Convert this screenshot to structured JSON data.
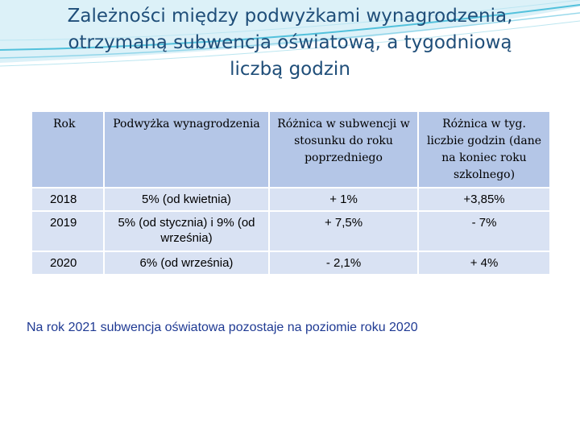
{
  "title": {
    "line1": "Zależności między podwyżkami wynagrodzenia,",
    "line2": "otrzymaną subwencja oświatową, a tygodniową",
    "line3": "liczbą godzin"
  },
  "table": {
    "headers": [
      "Rok",
      "Podwyżka wynagrodzenia",
      "Różnica w subwencji w stosunku do roku poprzedniego",
      "Różnica w tyg. liczbie godzin (dane na koniec roku szkolnego)"
    ],
    "rows": [
      [
        "2018",
        "5% (od kwietnia)",
        "+ 1%",
        "+3,85%"
      ],
      [
        "2019",
        "5% (od stycznia) i 9% (od września)",
        "+ 7,5%",
        "- 7%"
      ],
      [
        "2020",
        "6% (od września)",
        "- 2,1%",
        "+ 4%"
      ]
    ]
  },
  "note": "Na rok 2021 subwencja oświatowa pozostaje na poziomie roku 2020",
  "colors": {
    "title": "#1f4e79",
    "header_cell": "#b4c6e7",
    "body_cell": "#d9e2f3",
    "note": "#1f3a93",
    "decoration": "#2fb5d5"
  }
}
